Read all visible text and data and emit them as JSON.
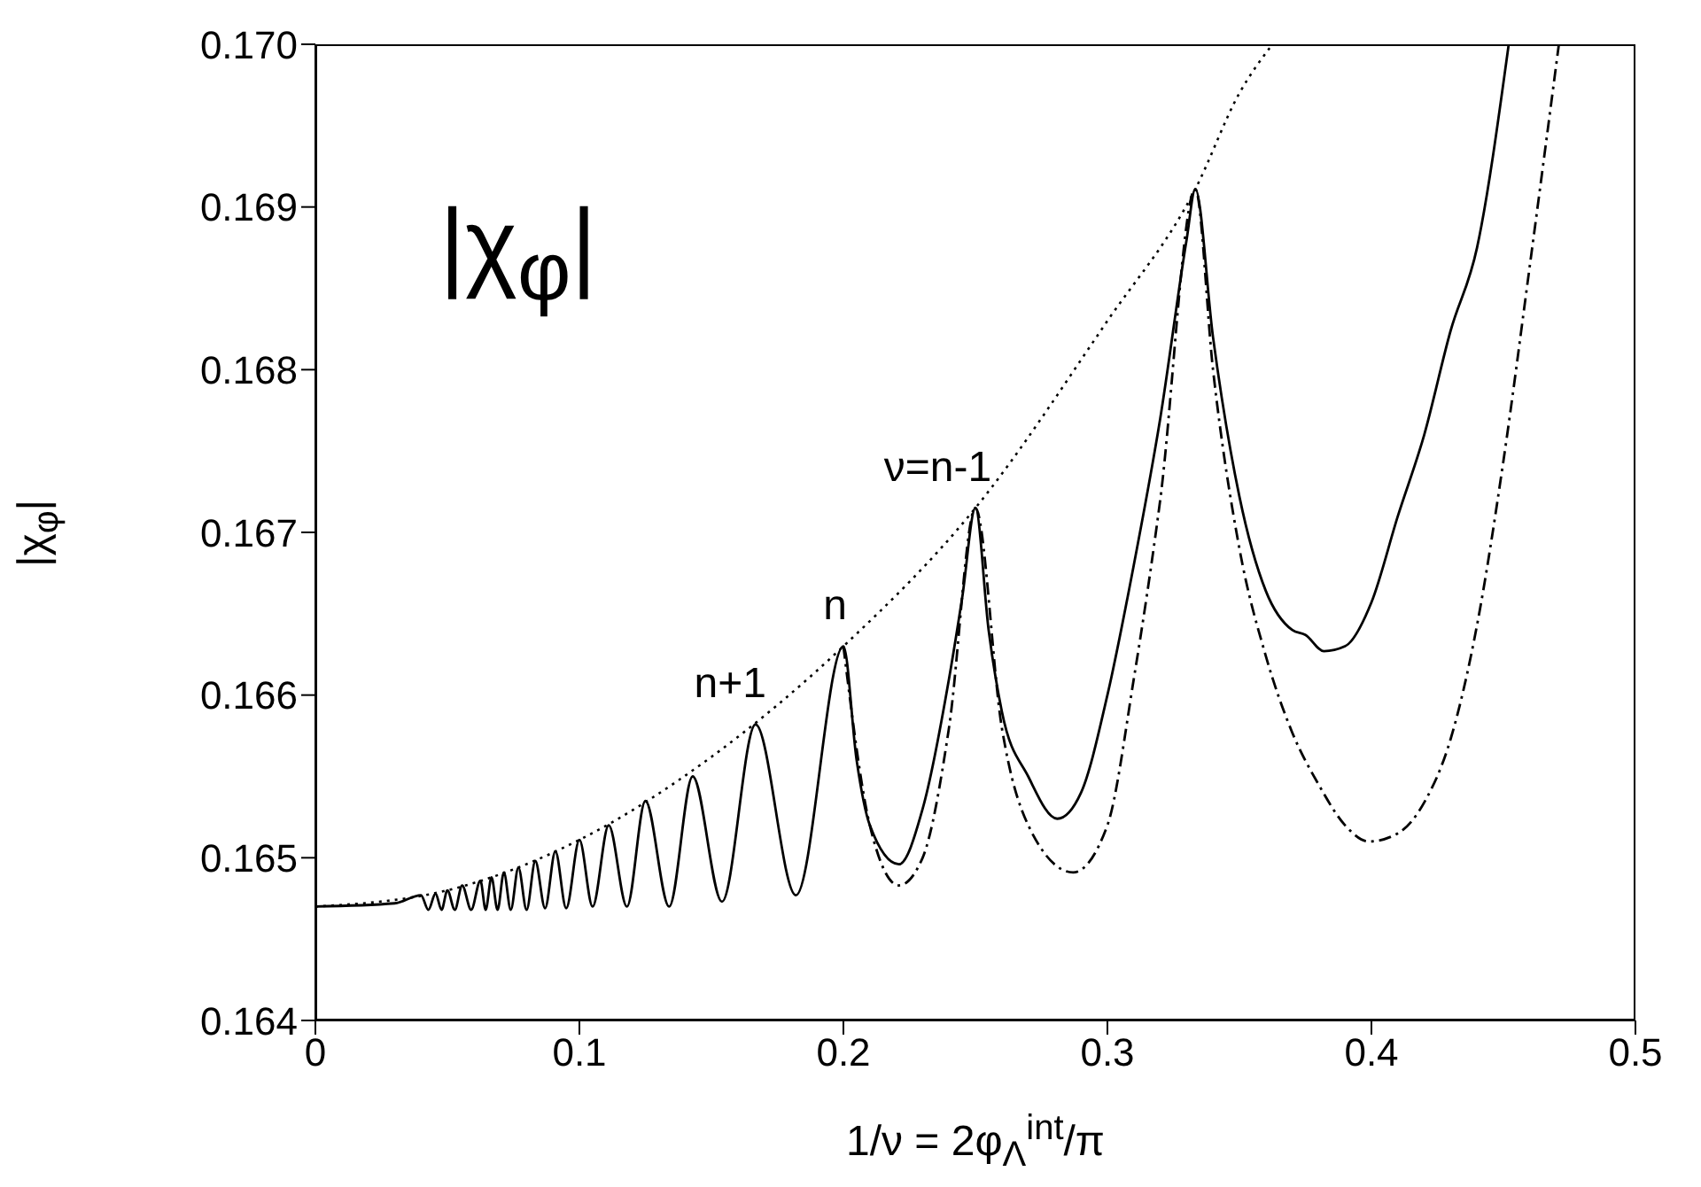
{
  "chart_data": {
    "type": "line",
    "xlabel": "1/ν = 2φ$_{Λ}$$^{int}$/π",
    "ylabel": "|χ$_{φ}$|",
    "xlim": [
      0,
      0.5
    ],
    "xticks": [
      0,
      0.1,
      0.2,
      0.3,
      0.4,
      0.5
    ],
    "ylim": [
      0.164,
      0.17
    ],
    "yticks": [
      0.164,
      0.165,
      0.166,
      0.167,
      0.168,
      0.169,
      {
        "value": 0.17,
        "label": "0.170"
      }
    ],
    "marker": "none",
    "annotations": [
      "|χ$_{φ}$|",
      {
        "text": "n+1",
        "x": 0.1667,
        "y": 0.16582
      },
      {
        "text": "n",
        "x": 0.2,
        "y": 0.1663
      },
      {
        "text": "ν=n-1",
        "x": 0.25,
        "y": 0.16715
      }
    ],
    "series": [
      {
        "color": "#000000",
        "line_style": "dotted",
        "x": [
          0,
          0.05,
          0.1,
          0.15,
          0.2,
          0.25,
          0.3,
          0.3333,
          0.35,
          0.3625
        ],
        "values": [
          0.1647,
          0.1648,
          0.16511,
          0.16562,
          0.1663,
          0.16715,
          0.1683,
          0.16911,
          0.1697,
          0.17
        ]
      },
      {
        "color": "#000000",
        "line_style": "solid",
        "x": [
          0,
          0.03,
          0.04,
          0.0428,
          0.0455,
          0.0478,
          0.05,
          0.0528,
          0.0556,
          0.059,
          0.0625,
          0.0645,
          0.0667,
          0.069,
          0.0714,
          0.074,
          0.0769,
          0.08,
          0.0833,
          0.087,
          0.0909,
          0.095,
          0.1,
          0.105,
          0.1111,
          0.118,
          0.125,
          0.134,
          0.1429,
          0.154,
          0.1667,
          0.182,
          0.2,
          0.205,
          0.21,
          0.221,
          0.23,
          0.24,
          0.245,
          0.25,
          0.255,
          0.26,
          0.27,
          0.281,
          0.29,
          0.3,
          0.31,
          0.32,
          0.33,
          0.3333,
          0.34,
          0.35,
          0.36,
          0.37,
          0.375,
          0.382,
          0.39,
          0.4,
          0.41,
          0.42,
          0.43,
          0.44,
          0.452
        ],
        "values": [
          0.1647,
          0.16472,
          0.16477,
          0.16468,
          0.16478,
          0.16468,
          0.1648,
          0.16468,
          0.16483,
          0.16468,
          0.16486,
          0.16468,
          0.16488,
          0.16468,
          0.16491,
          0.16468,
          0.16494,
          0.16468,
          0.16498,
          0.16469,
          0.16504,
          0.16469,
          0.16511,
          0.1647,
          0.1652,
          0.1647,
          0.16535,
          0.1647,
          0.1655,
          0.16473,
          0.16582,
          0.16477,
          0.1663,
          0.1656,
          0.1652,
          0.16496,
          0.1653,
          0.1661,
          0.1666,
          0.16715,
          0.1664,
          0.1659,
          0.1655,
          0.16524,
          0.1654,
          0.166,
          0.1668,
          0.1677,
          0.1688,
          0.16911,
          0.1682,
          0.16722,
          0.16664,
          0.1664,
          0.16637,
          0.16627,
          0.1663,
          0.16657,
          0.1671,
          0.1676,
          0.16824,
          0.16875,
          0.17
        ]
      },
      {
        "color": "#000000",
        "line_style": "dashed",
        "x": [
          0.2,
          0.21,
          0.221,
          0.23,
          0.24,
          0.25,
          0.26,
          0.27,
          0.287,
          0.3,
          0.31,
          0.32,
          0.3333,
          0.34,
          0.35,
          0.36,
          0.37,
          0.38,
          0.39,
          0.399,
          0.41,
          0.42,
          0.43,
          0.44,
          0.45,
          0.46,
          0.471
        ],
        "values": [
          0.1663,
          0.1652,
          0.16483,
          0.165,
          0.1658,
          0.16715,
          0.1658,
          0.1652,
          0.16491,
          0.1652,
          0.1661,
          0.1672,
          0.16911,
          0.168,
          0.1669,
          0.16624,
          0.16577,
          0.16545,
          0.1652,
          0.1651,
          0.16515,
          0.16534,
          0.16573,
          0.16643,
          0.16744,
          0.16864,
          0.17
        ]
      }
    ]
  }
}
